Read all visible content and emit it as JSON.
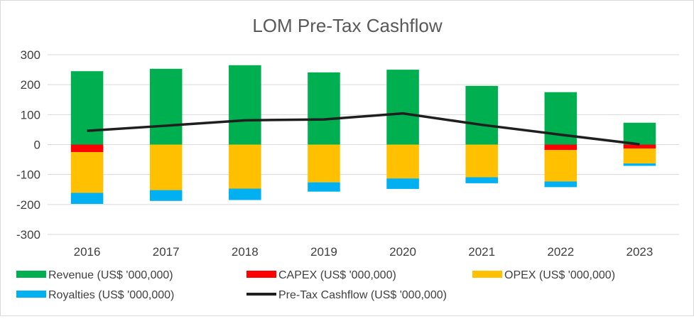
{
  "chart_data": {
    "type": "bar",
    "stacked": true,
    "title": "LOM Pre-Tax Cashflow",
    "categories": [
      "2016",
      "2017",
      "2018",
      "2019",
      "2020",
      "2021",
      "2022",
      "2023"
    ],
    "ylim": [
      -300,
      300
    ],
    "yticks": [
      300,
      200,
      100,
      0,
      -100,
      -200,
      -300
    ],
    "ytick_labels": [
      "300",
      "200",
      "100",
      "0",
      "-100",
      "-200",
      "-300"
    ],
    "grid": true,
    "legend_position": "bottom",
    "series": [
      {
        "name": "Revenue (US$ '000,000)",
        "kind": "bar",
        "color": "#00b050",
        "values": [
          245,
          253,
          265,
          241,
          250,
          196,
          175,
          73
        ]
      },
      {
        "name": "CAPEX (US$ '000,000)",
        "kind": "bar",
        "color": "#ff0000",
        "values": [
          -25,
          0,
          0,
          0,
          0,
          0,
          -18,
          -13
        ]
      },
      {
        "name": "OPEX (US$ '000,000)",
        "kind": "bar",
        "color": "#ffc000",
        "values": [
          -136,
          -152,
          -147,
          -126,
          -113,
          -109,
          -105,
          -50
        ]
      },
      {
        "name": "Royalties (US$ '000,000)",
        "kind": "bar",
        "color": "#00b0f0",
        "values": [
          -37,
          -36,
          -38,
          -31,
          -35,
          -20,
          -19,
          -8
        ]
      },
      {
        "name": "Pre-Tax Cashflow (US$ '000,000)",
        "kind": "line",
        "color": "#1f1f1f",
        "values": [
          46,
          63,
          81,
          84,
          104,
          66,
          33,
          1
        ]
      }
    ]
  }
}
